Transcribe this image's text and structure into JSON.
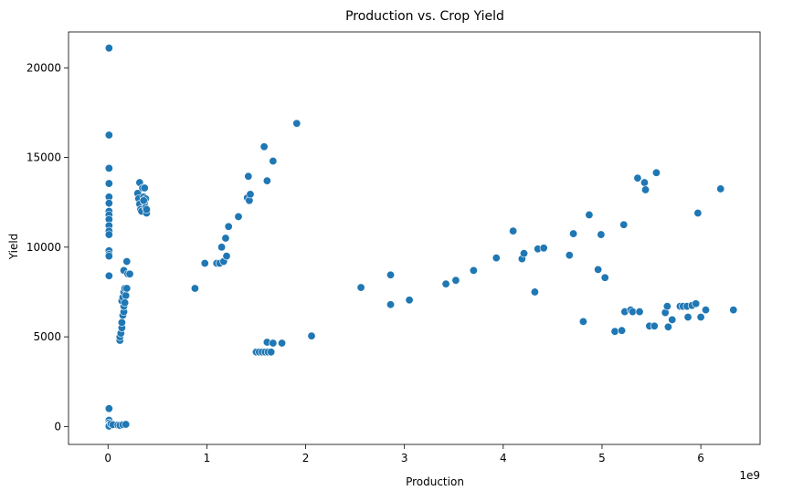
{
  "chart_data": {
    "type": "scatter",
    "title": "Production vs. Crop Yield",
    "xlabel": "Production",
    "ylabel": "Yield",
    "x_offset_label": "1e9",
    "xlim": [
      -0.4,
      6.6
    ],
    "ylim": [
      -1000,
      22000
    ],
    "xticks": [
      0,
      1,
      2,
      3,
      4,
      5,
      6
    ],
    "xtick_labels": [
      "0",
      "1",
      "2",
      "3",
      "4",
      "5",
      "6"
    ],
    "yticks": [
      0,
      5000,
      10000,
      15000,
      20000
    ],
    "ytick_labels": [
      "0",
      "5000",
      "10000",
      "15000",
      "20000"
    ],
    "grid": false,
    "legend": "none",
    "marker_color": "#1f77b4",
    "series": [
      {
        "x_unit": "1e9",
        "points": [
          [
            0.01,
            21100
          ],
          [
            0.01,
            16250
          ],
          [
            0.01,
            14400
          ],
          [
            0.01,
            13550
          ],
          [
            0.01,
            12800
          ],
          [
            0.01,
            12450
          ],
          [
            0.01,
            12000
          ],
          [
            0.01,
            11800
          ],
          [
            0.01,
            11550
          ],
          [
            0.01,
            11200
          ],
          [
            0.01,
            10900
          ],
          [
            0.01,
            10700
          ],
          [
            0.01,
            9800
          ],
          [
            0.01,
            9600
          ],
          [
            0.01,
            9500
          ],
          [
            0.01,
            8400
          ],
          [
            0.01,
            1000
          ],
          [
            0.01,
            350
          ],
          [
            0.01,
            200
          ],
          [
            0.01,
            100
          ],
          [
            0.01,
            50
          ],
          [
            0.01,
            20
          ],
          [
            0.03,
            150
          ],
          [
            0.05,
            100
          ],
          [
            0.1,
            80
          ],
          [
            0.12,
            60
          ],
          [
            0.15,
            100
          ],
          [
            0.18,
            120
          ],
          [
            0.12,
            4800
          ],
          [
            0.12,
            5000
          ],
          [
            0.13,
            5200
          ],
          [
            0.14,
            5500
          ],
          [
            0.14,
            5800
          ],
          [
            0.15,
            6200
          ],
          [
            0.16,
            6400
          ],
          [
            0.16,
            6700
          ],
          [
            0.14,
            7000
          ],
          [
            0.15,
            7200
          ],
          [
            0.16,
            7500
          ],
          [
            0.17,
            7700
          ],
          [
            0.18,
            7300
          ],
          [
            0.17,
            6900
          ],
          [
            0.19,
            7700
          ],
          [
            0.16,
            8700
          ],
          [
            0.2,
            8500
          ],
          [
            0.22,
            8500
          ],
          [
            0.19,
            9200
          ],
          [
            0.3,
            13000
          ],
          [
            0.31,
            12700
          ],
          [
            0.32,
            12400
          ],
          [
            0.33,
            12100
          ],
          [
            0.34,
            12000
          ],
          [
            0.32,
            13600
          ],
          [
            0.35,
            13300
          ],
          [
            0.36,
            12800
          ],
          [
            0.37,
            12500
          ],
          [
            0.38,
            12200
          ],
          [
            0.39,
            11900
          ],
          [
            0.37,
            13300
          ],
          [
            0.38,
            12700
          ],
          [
            0.39,
            12100
          ],
          [
            0.36,
            12600
          ],
          [
            0.88,
            7700
          ],
          [
            0.98,
            9100
          ],
          [
            1.1,
            9100
          ],
          [
            1.13,
            9100
          ],
          [
            1.17,
            9200
          ],
          [
            1.15,
            10000
          ],
          [
            1.2,
            9500
          ],
          [
            1.19,
            10500
          ],
          [
            1.22,
            11150
          ],
          [
            1.32,
            11700
          ],
          [
            1.41,
            12750
          ],
          [
            1.43,
            12600
          ],
          [
            1.44,
            12950
          ],
          [
            1.42,
            13950
          ],
          [
            1.58,
            15600
          ],
          [
            1.61,
            13700
          ],
          [
            1.67,
            14800
          ],
          [
            1.91,
            16900
          ],
          [
            1.5,
            4150
          ],
          [
            1.53,
            4150
          ],
          [
            1.56,
            4150
          ],
          [
            1.59,
            4150
          ],
          [
            1.62,
            4150
          ],
          [
            1.65,
            4150
          ],
          [
            1.61,
            4700
          ],
          [
            1.67,
            4650
          ],
          [
            1.76,
            4650
          ],
          [
            2.06,
            5050
          ],
          [
            2.56,
            7750
          ],
          [
            2.86,
            8450
          ],
          [
            2.86,
            6800
          ],
          [
            3.05,
            7050
          ],
          [
            3.42,
            7950
          ],
          [
            3.52,
            8150
          ],
          [
            3.7,
            8700
          ],
          [
            3.93,
            9400
          ],
          [
            4.1,
            10900
          ],
          [
            4.19,
            9350
          ],
          [
            4.21,
            9650
          ],
          [
            4.32,
            7500
          ],
          [
            4.35,
            9900
          ],
          [
            4.41,
            9950
          ],
          [
            4.67,
            9550
          ],
          [
            4.71,
            10750
          ],
          [
            4.81,
            5850
          ],
          [
            4.87,
            11800
          ],
          [
            4.96,
            8750
          ],
          [
            4.99,
            10700
          ],
          [
            5.03,
            8300
          ],
          [
            5.13,
            5300
          ],
          [
            5.2,
            5350
          ],
          [
            5.22,
            11250
          ],
          [
            5.23,
            6400
          ],
          [
            5.29,
            6500
          ],
          [
            5.31,
            6400
          ],
          [
            5.38,
            6400
          ],
          [
            5.36,
            13850
          ],
          [
            5.43,
            13600
          ],
          [
            5.44,
            13200
          ],
          [
            5.48,
            5600
          ],
          [
            5.53,
            5600
          ],
          [
            5.55,
            14150
          ],
          [
            5.64,
            6350
          ],
          [
            5.66,
            6700
          ],
          [
            5.67,
            5550
          ],
          [
            5.71,
            5950
          ],
          [
            5.79,
            6700
          ],
          [
            5.82,
            6700
          ],
          [
            5.86,
            6700
          ],
          [
            5.87,
            6100
          ],
          [
            5.91,
            6750
          ],
          [
            5.95,
            6850
          ],
          [
            5.97,
            11900
          ],
          [
            6.0,
            6100
          ],
          [
            6.05,
            6500
          ],
          [
            6.2,
            13250
          ],
          [
            6.33,
            6500
          ]
        ]
      }
    ]
  }
}
